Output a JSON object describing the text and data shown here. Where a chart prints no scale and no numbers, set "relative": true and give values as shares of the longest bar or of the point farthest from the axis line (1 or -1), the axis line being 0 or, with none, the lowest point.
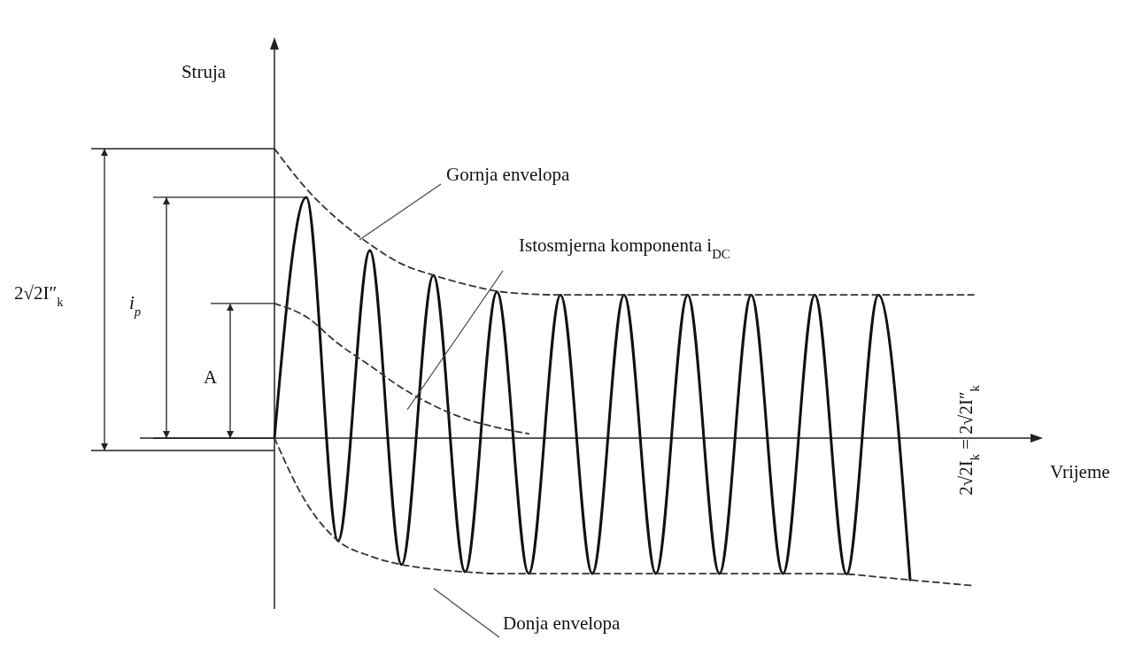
{
  "chart_data": {
    "type": "line",
    "relative": true,
    "xlabel": "Vrijeme",
    "ylabel": "Struja",
    "categories": [
      null,
      null,
      null,
      null,
      null,
      null,
      null,
      null,
      null,
      null,
      null,
      null,
      null,
      null,
      null,
      null,
      null,
      null,
      null,
      null,
      null,
      null,
      null
    ],
    "series": [
      {
        "color": "#111111",
        "line_style": "solid",
        "values": [
          0,
          0.832,
          -0.355,
          0.648,
          -0.437,
          0.563,
          -0.462,
          0.505,
          -0.468,
          0.495,
          -0.468,
          0.495,
          -0.468,
          0.495,
          -0.468,
          0.495,
          -0.468,
          0.495,
          -0.47,
          0.495,
          -0.49,
          null,
          null
        ]
      },
      {
        "color": "#333333",
        "line_style": "dashed",
        "values": [
          1.0,
          0.862,
          0.755,
          0.67,
          0.602,
          0.563,
          0.532,
          0.508,
          0.498,
          0.495,
          0.495,
          0.495,
          0.495,
          0.495,
          0.495,
          0.495,
          0.495,
          0.495,
          0.495,
          0.495,
          0.495,
          0.495,
          0.495
        ]
      },
      {
        "color": "#333333",
        "line_style": "dashed",
        "values": [
          0,
          -0.223,
          -0.355,
          -0.407,
          -0.437,
          -0.453,
          -0.462,
          -0.468,
          -0.468,
          -0.468,
          -0.468,
          -0.468,
          -0.468,
          -0.468,
          -0.468,
          -0.468,
          -0.468,
          -0.468,
          -0.47,
          -0.48,
          -0.49,
          -0.5,
          -0.51
        ]
      },
      {
        "color": "#333333",
        "line_style": "dashed",
        "values": [
          0.465,
          0.419,
          0.327,
          0.251,
          0.174,
          0.113,
          0.067,
          0.037,
          0.015,
          null,
          null,
          null,
          null,
          null,
          null,
          null,
          null,
          null,
          null,
          null,
          null,
          null,
          null
        ]
      }
    ],
    "annotations": [
      "2√2I″$_{k}$",
      "i$_{p}$",
      "A",
      "Gornja envelopa",
      "Istosmjerna komponenta i$_{DC}$",
      "2√2I$_{k}$ = 2√2I″$_{k}$",
      "Donja envelopa"
    ]
  }
}
